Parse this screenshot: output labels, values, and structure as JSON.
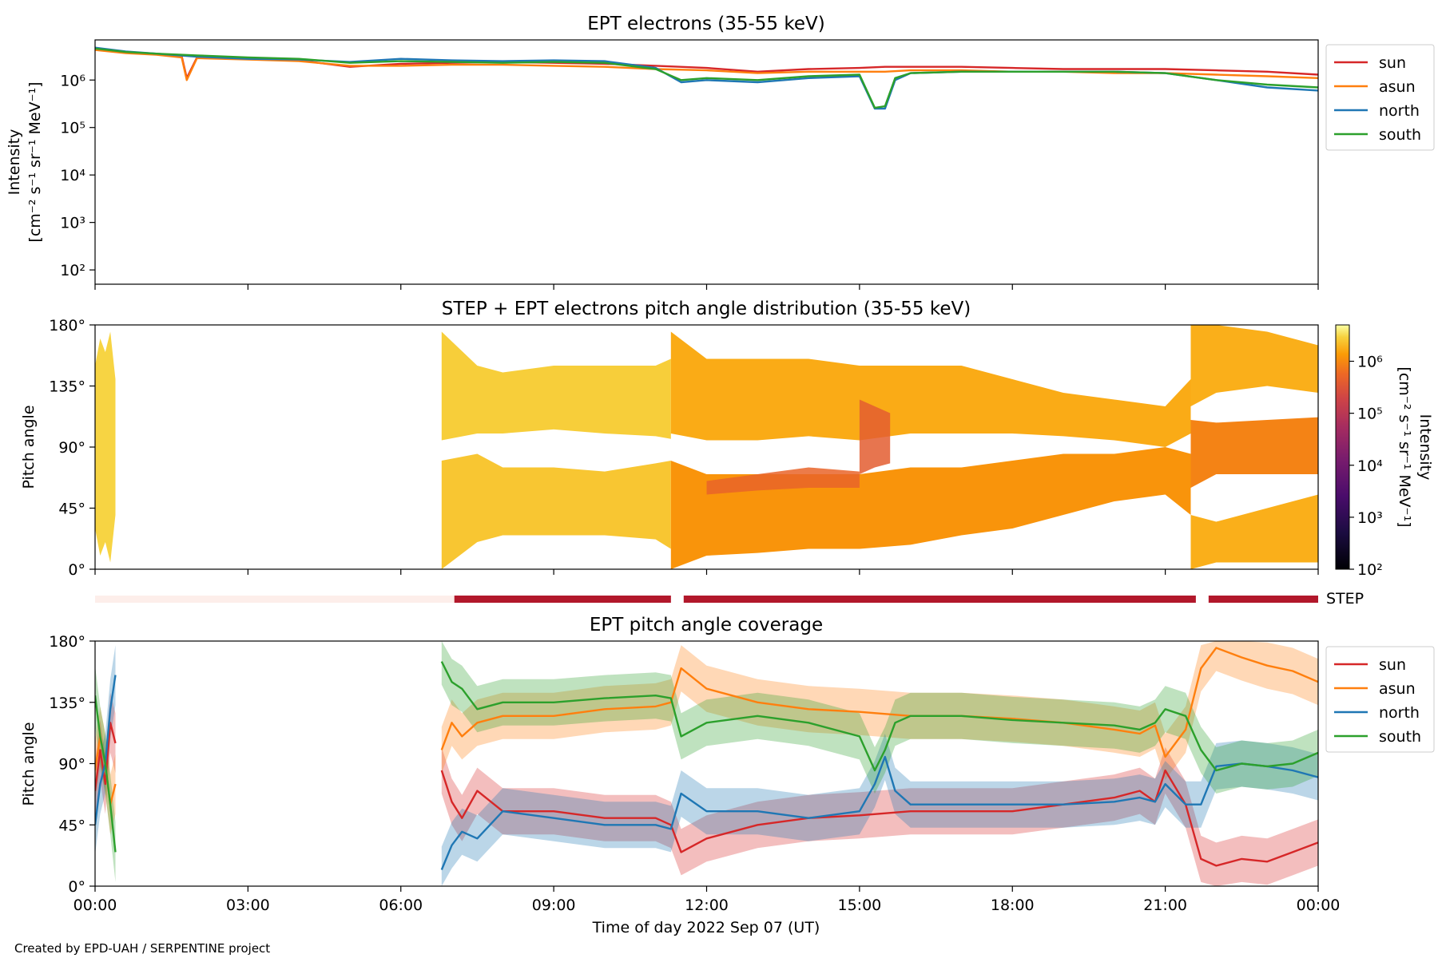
{
  "credit": "Created by EPD-UAH / SERPENTINE project",
  "colors": {
    "sun": "#d62728",
    "asun": "#ff7f0e",
    "north": "#1f77b4",
    "south": "#2ca02c",
    "step_bar": "#b2182b",
    "step_bar_faint": "#fdeeea"
  },
  "chart_data": [
    {
      "type": "line",
      "title": "EPT electrons (35-55 keV)",
      "ylabel_line1": "Intensity",
      "ylabel_line2": "[cm⁻² s⁻¹ sr⁻¹ MeV⁻¹]",
      "yscale": "log",
      "ylim": [
        50,
        7000000
      ],
      "yticks": [
        "10²",
        "10³",
        "10⁴",
        "10⁵",
        "10⁶"
      ],
      "ytick_values": [
        100,
        1000,
        10000,
        100000,
        1000000
      ],
      "xlim": [
        0,
        24
      ],
      "legend": "outside-right",
      "series": [
        {
          "name": "sun",
          "key": "sun",
          "x": [
            0,
            0.6,
            1.2,
            1.7,
            1.8,
            2,
            3,
            4,
            5,
            6,
            7,
            8,
            9,
            10,
            11,
            12,
            13,
            14,
            15,
            15.5,
            16,
            17,
            18,
            19,
            20,
            21,
            22,
            23,
            24
          ],
          "y": [
            4500000,
            3800000,
            3500000,
            3200000,
            1100000,
            3000000,
            2800000,
            2600000,
            1900000,
            2200000,
            2300000,
            2400000,
            2300000,
            2200000,
            2000000,
            1800000,
            1500000,
            1700000,
            1800000,
            1900000,
            1900000,
            1900000,
            1800000,
            1700000,
            1700000,
            1700000,
            1600000,
            1500000,
            1300000
          ]
        },
        {
          "name": "asun",
          "key": "asun",
          "x": [
            0,
            0.6,
            1.2,
            1.7,
            1.8,
            2,
            3,
            4,
            5,
            6,
            7,
            8,
            9,
            10,
            11,
            12,
            13,
            14,
            15,
            15.5,
            16,
            17,
            18,
            19,
            20,
            21,
            22,
            23,
            24
          ],
          "y": [
            4300000,
            3700000,
            3400000,
            3000000,
            1000000,
            2900000,
            2700000,
            2500000,
            2000000,
            2000000,
            2100000,
            2100000,
            2000000,
            1900000,
            1700000,
            1600000,
            1400000,
            1500000,
            1500000,
            1500000,
            1600000,
            1600000,
            1500000,
            1500000,
            1400000,
            1400000,
            1300000,
            1200000,
            1100000
          ]
        },
        {
          "name": "north",
          "key": "north",
          "x": [
            0,
            0.6,
            1.2,
            2,
            3,
            4,
            5,
            6,
            7,
            8,
            9,
            10,
            11,
            11.5,
            12,
            13,
            14,
            15,
            15.3,
            15.5,
            15.7,
            16,
            17,
            18,
            19,
            20,
            21,
            22,
            23,
            24
          ],
          "y": [
            4800000,
            4000000,
            3600000,
            3100000,
            2800000,
            2700000,
            2400000,
            2800000,
            2600000,
            2500000,
            2600000,
            2500000,
            1800000,
            900000,
            1000000,
            900000,
            1100000,
            1200000,
            250000,
            250000,
            1000000,
            1400000,
            1500000,
            1500000,
            1500000,
            1500000,
            1400000,
            1000000,
            700000,
            600000
          ]
        },
        {
          "name": "south",
          "key": "south",
          "x": [
            0,
            0.6,
            1.2,
            2,
            3,
            4,
            5,
            6,
            7,
            8,
            9,
            10,
            11,
            11.5,
            12,
            13,
            14,
            15,
            15.3,
            15.5,
            15.7,
            16,
            17,
            18,
            19,
            20,
            21,
            22,
            23,
            24
          ],
          "y": [
            4600000,
            3900000,
            3600000,
            3300000,
            3000000,
            2800000,
            2300000,
            2500000,
            2400000,
            2300000,
            2400000,
            2300000,
            1700000,
            1000000,
            1100000,
            1000000,
            1200000,
            1300000,
            260000,
            280000,
            1100000,
            1400000,
            1500000,
            1500000,
            1500000,
            1500000,
            1400000,
            1000000,
            800000,
            700000
          ]
        }
      ]
    },
    {
      "type": "heatmap",
      "title": "STEP + EPT electrons pitch angle distribution (35-55 keV)",
      "ylabel": "Pitch angle",
      "ylim": [
        0,
        180
      ],
      "yticks": [
        "0°",
        "45°",
        "90°",
        "135°",
        "180°"
      ],
      "ytick_values": [
        0,
        45,
        90,
        135,
        180
      ],
      "xlim": [
        0,
        24
      ],
      "colorbar": {
        "scale": "log",
        "range": [
          100,
          5000000
        ],
        "ticks": [
          "10²",
          "10³",
          "10⁴",
          "10⁵",
          "10⁶"
        ],
        "label_line1": "Intensity",
        "label_line2": "[cm⁻² s⁻¹ sr⁻¹ MeV⁻¹]"
      },
      "bands": [
        {
          "x": [
            0,
            0.1,
            0.2,
            0.3,
            0.4
          ],
          "lo": [
            30,
            10,
            20,
            5,
            40
          ],
          "hi": [
            150,
            170,
            160,
            175,
            140
          ],
          "intensity": 3000000
        },
        {
          "x": [
            6.8,
            7.5,
            8,
            9,
            10,
            11,
            11.3
          ],
          "lo": [
            95,
            100,
            100,
            103,
            100,
            98,
            96
          ],
          "hi": [
            175,
            150,
            145,
            150,
            150,
            150,
            155
          ],
          "intensity": 2800000
        },
        {
          "x": [
            6.8,
            7.5,
            8,
            9,
            10,
            11,
            11.3
          ],
          "lo": [
            0,
            20,
            25,
            25,
            25,
            22,
            15
          ],
          "hi": [
            80,
            85,
            75,
            75,
            72,
            78,
            80
          ],
          "intensity": 2500000
        },
        {
          "x": [
            11.3,
            12,
            13,
            14,
            15,
            16,
            17,
            18,
            19,
            20,
            21,
            21.5
          ],
          "lo": [
            100,
            95,
            95,
            98,
            95,
            100,
            100,
            100,
            98,
            95,
            90,
            100
          ],
          "hi": [
            175,
            155,
            155,
            155,
            150,
            150,
            150,
            140,
            130,
            125,
            120,
            140
          ],
          "intensity": 1700000
        },
        {
          "x": [
            11.3,
            12,
            13,
            14,
            15,
            16,
            17,
            18,
            19,
            20,
            21,
            21.5
          ],
          "lo": [
            0,
            10,
            12,
            15,
            15,
            18,
            25,
            30,
            40,
            50,
            55,
            40
          ],
          "hi": [
            80,
            70,
            70,
            70,
            70,
            75,
            75,
            80,
            85,
            85,
            90,
            85
          ],
          "intensity": 1200000
        },
        {
          "x": [
            21.5,
            22,
            23,
            24
          ],
          "lo": [
            120,
            130,
            135,
            130
          ],
          "hi": [
            180,
            180,
            175,
            165
          ],
          "intensity": 1800000
        },
        {
          "x": [
            21.5,
            22,
            23,
            24
          ],
          "lo": [
            60,
            70,
            70,
            70
          ],
          "hi": [
            110,
            108,
            110,
            112
          ],
          "intensity": 900000
        },
        {
          "x": [
            21.5,
            22,
            23,
            24
          ],
          "lo": [
            0,
            5,
            5,
            5
          ],
          "hi": [
            40,
            35,
            45,
            55
          ],
          "intensity": 1800000
        }
      ],
      "hot_regions": [
        {
          "x": [
            12,
            13,
            14,
            15
          ],
          "lo": [
            55,
            58,
            60,
            60
          ],
          "hi": [
            65,
            70,
            75,
            72
          ],
          "intensity": 500000
        },
        {
          "x": [
            15,
            15.3,
            15.6
          ],
          "lo": [
            70,
            75,
            78
          ],
          "hi": [
            125,
            120,
            115
          ],
          "intensity": 400000
        }
      ]
    },
    {
      "type": "bar",
      "title": "",
      "label": "STEP",
      "segments": [
        {
          "x0": 0,
          "x1": 7.05,
          "status": "off"
        },
        {
          "x0": 7.05,
          "x1": 11.3,
          "status": "on"
        },
        {
          "x0": 11.55,
          "x1": 21.6,
          "status": "on"
        },
        {
          "x0": 21.85,
          "x1": 24,
          "status": "on"
        }
      ]
    },
    {
      "type": "line",
      "title": "EPT pitch angle coverage",
      "ylabel": "Pitch angle",
      "ylim": [
        0,
        180
      ],
      "yticks": [
        "0°",
        "45°",
        "90°",
        "135°",
        "180°"
      ],
      "ytick_values": [
        0,
        45,
        90,
        135,
        180
      ],
      "xlim": [
        0,
        24
      ],
      "xticks": [
        "00:00",
        "03:00",
        "06:00",
        "09:00",
        "12:00",
        "15:00",
        "18:00",
        "21:00",
        "00:00"
      ],
      "xtick_values": [
        0,
        3,
        6,
        9,
        12,
        15,
        18,
        21,
        24
      ],
      "xlabel": "Time of day 2022 Sep 07 (UT)",
      "legend": "outside-right",
      "series": [
        {
          "name": "sun",
          "key": "sun",
          "segments": [
            {
              "x": [
                0,
                0.1,
                0.2,
                0.3,
                0.4
              ],
              "y": [
                70,
                100,
                75,
                120,
                105
              ],
              "spread": 22
            },
            {
              "x": [
                6.8,
                7.0,
                7.2,
                7.5,
                8,
                9,
                10,
                11,
                11.3,
                11.5,
                12,
                13,
                14,
                15,
                16,
                17,
                18,
                19,
                20,
                20.5,
                20.8,
                21,
                21.4,
                21.7,
                22,
                22.5,
                23,
                23.5,
                24
              ],
              "y": [
                85,
                62,
                50,
                70,
                55,
                55,
                50,
                50,
                45,
                25,
                35,
                45,
                50,
                52,
                55,
                55,
                55,
                60,
                65,
                70,
                62,
                85,
                60,
                20,
                15,
                20,
                18,
                25,
                32
              ],
              "spread": 17
            }
          ]
        },
        {
          "name": "asun",
          "key": "asun",
          "segments": [
            {
              "x": [
                0,
                0.1,
                0.2,
                0.3,
                0.4
              ],
              "y": [
                85,
                110,
                90,
                60,
                75
              ],
              "spread": 22
            },
            {
              "x": [
                6.8,
                7.0,
                7.2,
                7.5,
                8,
                9,
                10,
                11,
                11.3,
                11.5,
                12,
                13,
                14,
                15,
                16,
                17,
                18,
                19,
                20,
                20.5,
                20.8,
                21,
                21.4,
                21.7,
                22,
                22.5,
                23,
                23.5,
                24
              ],
              "y": [
                100,
                120,
                110,
                120,
                125,
                125,
                130,
                132,
                135,
                160,
                145,
                135,
                130,
                128,
                125,
                125,
                123,
                120,
                115,
                112,
                118,
                95,
                115,
                160,
                175,
                168,
                162,
                158,
                150
              ],
              "spread": 17
            }
          ]
        },
        {
          "name": "north",
          "key": "north",
          "segments": [
            {
              "x": [
                0,
                0.1,
                0.2,
                0.3,
                0.4
              ],
              "y": [
                45,
                75,
                90,
                130,
                155
              ],
              "spread": 22
            },
            {
              "x": [
                6.8,
                7.0,
                7.2,
                7.5,
                8,
                9,
                10,
                11,
                11.3,
                11.5,
                12,
                13,
                14,
                15,
                15.3,
                15.5,
                15.7,
                16,
                17,
                18,
                19,
                20,
                20.5,
                20.8,
                21,
                21.4,
                21.7,
                22,
                22.5,
                23,
                23.5,
                24
              ],
              "y": [
                12,
                30,
                40,
                35,
                55,
                50,
                45,
                45,
                42,
                68,
                55,
                55,
                50,
                55,
                75,
                95,
                70,
                60,
                60,
                60,
                60,
                62,
                65,
                62,
                75,
                60,
                60,
                88,
                90,
                88,
                85,
                80
              ],
              "spread": 17
            }
          ]
        },
        {
          "name": "south",
          "key": "south",
          "segments": [
            {
              "x": [
                0,
                0.1,
                0.2,
                0.3,
                0.4
              ],
              "y": [
                140,
                110,
                90,
                60,
                25
              ],
              "spread": 22
            },
            {
              "x": [
                6.8,
                7.0,
                7.2,
                7.5,
                8,
                9,
                10,
                11,
                11.3,
                11.5,
                12,
                13,
                14,
                15,
                15.3,
                15.5,
                15.7,
                16,
                17,
                18,
                19,
                20,
                20.5,
                20.8,
                21,
                21.4,
                21.7,
                22,
                22.5,
                23,
                23.5,
                24
              ],
              "y": [
                165,
                150,
                145,
                130,
                135,
                135,
                138,
                140,
                138,
                110,
                120,
                125,
                120,
                110,
                85,
                100,
                120,
                125,
                125,
                122,
                120,
                118,
                115,
                120,
                130,
                125,
                100,
                85,
                90,
                88,
                90,
                98
              ],
              "spread": 17
            }
          ]
        }
      ]
    }
  ]
}
